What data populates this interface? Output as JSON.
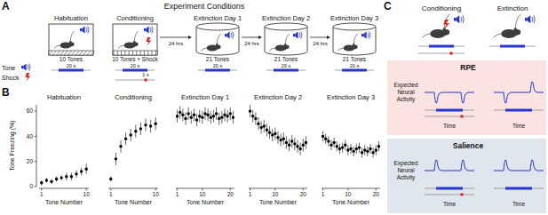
{
  "panel_labels": [
    "A",
    "B",
    "C"
  ],
  "panel_a": {
    "title": "Experiment Conditions",
    "conditions": [
      {
        "name": "Habituation",
        "count": "10 Tones"
      },
      {
        "name": "Conditioning",
        "count": "10 Tones + Shock",
        "shock_duration": "1 s"
      },
      {
        "name": "Extinction Day 1",
        "count": "21 Tones"
      },
      {
        "name": "Extinction Day 2",
        "count": "21 Tones"
      },
      {
        "name": "Extinction Day 3",
        "count": "21 Tones"
      }
    ],
    "interval": "24 hrs",
    "tone_label": "Tone",
    "shock_label": "Shock",
    "tone_duration": "20 s"
  },
  "chart_data": [
    {
      "type": "scatter",
      "title": "Habituation",
      "x_label": "Tone Number",
      "y_label": "Tone Freezing (%)",
      "x": [
        1,
        2,
        3,
        4,
        5,
        6,
        7,
        8,
        9,
        10
      ],
      "values": [
        3,
        5,
        4,
        6,
        7,
        8,
        8,
        10,
        12,
        14
      ],
      "errors": [
        2,
        2,
        2,
        2,
        2,
        3,
        3,
        3,
        3,
        4
      ],
      "xlim": [
        0.5,
        10.5
      ],
      "xticks": [
        1,
        10
      ],
      "ylim": [
        0,
        65
      ],
      "yticks": [
        0,
        20,
        40,
        60
      ],
      "marker": "circle",
      "color": "#000000"
    },
    {
      "type": "scatter",
      "title": "Conditioning",
      "x_label": "Tone Number",
      "x": [
        1,
        2,
        3,
        4,
        5,
        6,
        7,
        8,
        9,
        10
      ],
      "values": [
        6,
        22,
        32,
        38,
        41,
        44,
        46,
        49,
        48,
        50
      ],
      "errors": [
        2,
        5,
        5,
        5,
        5,
        5,
        5,
        5,
        5,
        5
      ],
      "xlim": [
        0.5,
        10.5
      ],
      "xticks": [
        1,
        10
      ],
      "ylim": [
        0,
        65
      ],
      "tick_labels": "x",
      "marker": "circle",
      "color": "#000000"
    },
    {
      "type": "scatter",
      "title": "Extinction Day 1",
      "x_label": "Tone Number",
      "x": [
        1,
        2,
        3,
        4,
        5,
        6,
        7,
        8,
        9,
        10,
        11,
        12,
        13,
        14,
        15,
        16,
        17,
        18,
        19,
        20,
        21
      ],
      "values": [
        56,
        59,
        57,
        54,
        58,
        55,
        57,
        53,
        56,
        55,
        58,
        57,
        55,
        56,
        58,
        54,
        55,
        57,
        56,
        58,
        55
      ],
      "errors": [
        5,
        5,
        5,
        5,
        5,
        5,
        5,
        5,
        5,
        5,
        5,
        5,
        5,
        5,
        5,
        5,
        5,
        5,
        5,
        5,
        5
      ],
      "xlim": [
        0.5,
        21.5
      ],
      "xticks": [
        1,
        10,
        20
      ],
      "ylim": [
        0,
        65
      ],
      "tick_labels": "x",
      "marker": "circle",
      "color": "#000000"
    },
    {
      "type": "scatter",
      "title": "Extinction Day 2",
      "x_label": "Tone Number",
      "x": [
        1,
        2,
        3,
        4,
        5,
        6,
        7,
        8,
        9,
        10,
        11,
        12,
        13,
        14,
        15,
        16,
        17,
        18,
        19,
        20,
        21
      ],
      "values": [
        60,
        56,
        54,
        50,
        47,
        48,
        45,
        43,
        41,
        42,
        39,
        37,
        38,
        35,
        33,
        36,
        34,
        32,
        30,
        33,
        35
      ],
      "errors": [
        5,
        5,
        5,
        5,
        5,
        5,
        5,
        5,
        5,
        5,
        5,
        5,
        5,
        5,
        5,
        5,
        5,
        5,
        5,
        5,
        5
      ],
      "xlim": [
        0.5,
        21.5
      ],
      "xticks": [
        1,
        10,
        20
      ],
      "ylim": [
        0,
        65
      ],
      "tick_labels": "x",
      "marker": "circle",
      "color": "#000000"
    },
    {
      "type": "scatter",
      "title": "Extinction Day 3",
      "x_label": "Tone Number",
      "x": [
        1,
        2,
        3,
        4,
        5,
        6,
        7,
        8,
        9,
        10,
        11,
        12,
        13,
        14,
        15,
        16,
        17,
        18,
        19,
        20,
        21
      ],
      "values": [
        40,
        38,
        36,
        33,
        35,
        32,
        30,
        31,
        33,
        29,
        30,
        28,
        30,
        31,
        27,
        29,
        28,
        30,
        27,
        29,
        32
      ],
      "errors": [
        4,
        4,
        4,
        4,
        4,
        4,
        4,
        4,
        4,
        4,
        4,
        4,
        4,
        4,
        4,
        4,
        4,
        4,
        4,
        4,
        4
      ],
      "xlim": [
        0.5,
        21.5
      ],
      "xticks": [
        1,
        10,
        20
      ],
      "ylim": [
        0,
        65
      ],
      "tick_labels": "x",
      "marker": "circle",
      "color": "#000000"
    }
  ],
  "panel_c": {
    "columns": [
      "Conditioning",
      "Extinction"
    ],
    "rows": [
      {
        "title": "RPE",
        "y_label": "Expected Neural Activity",
        "color": "#fbe3e1"
      },
      {
        "title": "Salience",
        "y_label": "Expected Neural Activity",
        "color": "#dfe6ee"
      }
    ],
    "x_label": "Time"
  }
}
